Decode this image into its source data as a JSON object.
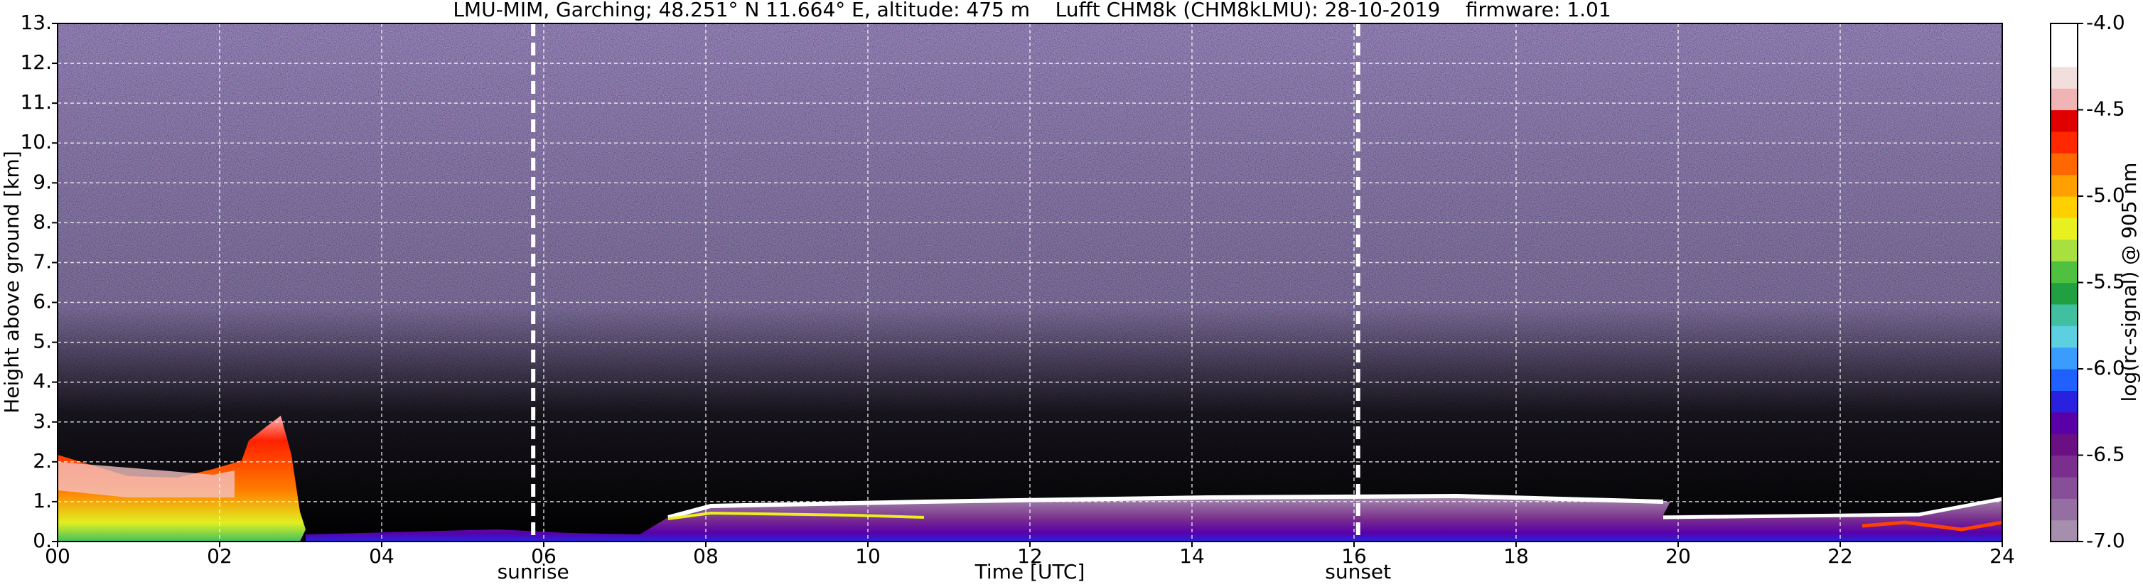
{
  "chart_data": {
    "type": "heatmap",
    "title": "LMU-MIM, Garching; 48.251° N 11.664° E, altitude: 475 m    Lufft CHM8k (CHM8kLMU): 28-10-2019    firmware: 1.01",
    "x_label": "Time [UTC]",
    "y_label": "Height above ground [km]",
    "xlim": [
      0,
      24
    ],
    "xticks": [
      {
        "value": 0,
        "label": "00"
      },
      {
        "value": 2,
        "label": "02"
      },
      {
        "value": 4,
        "label": "04"
      },
      {
        "value": 6,
        "label": "06"
      },
      {
        "value": 8,
        "label": "08"
      },
      10,
      12,
      14,
      16,
      18,
      20,
      22,
      24
    ],
    "ylim": [
      0,
      13
    ],
    "yticks": [
      {
        "value": 0,
        "label": "0."
      },
      {
        "value": 1,
        "label": "1."
      },
      {
        "value": 2,
        "label": "2."
      },
      {
        "value": 3,
        "label": "3."
      },
      {
        "value": 4,
        "label": "4."
      },
      {
        "value": 5,
        "label": "5."
      },
      {
        "value": 6,
        "label": "6."
      },
      {
        "value": 7,
        "label": "7."
      },
      {
        "value": 8,
        "label": "8."
      },
      {
        "value": 9,
        "label": "9."
      },
      {
        "value": 10,
        "label": "10."
      },
      {
        "value": 11,
        "label": "11."
      },
      {
        "value": 12,
        "label": "12."
      },
      {
        "value": 13,
        "label": "13."
      }
    ],
    "grid": true,
    "annotations": [
      {
        "x": 5.87,
        "label": "sunrise"
      },
      {
        "x": 16.05,
        "label": "sunset"
      }
    ],
    "colorbar": {
      "label": "log(rc-signal) @ 905 nm",
      "zlim": [
        -7,
        -4
      ],
      "zticks": [
        {
          "value": -7,
          "label": "-7.0"
        },
        {
          "value": -6.5,
          "label": "-6.5"
        },
        {
          "value": -6,
          "label": "-6.0"
        },
        {
          "value": -5.5,
          "label": "-5.5"
        },
        {
          "value": -5,
          "label": "-5.0"
        },
        {
          "value": -4.5,
          "label": "-4.5"
        },
        {
          "value": -4,
          "label": "-4.0"
        }
      ],
      "colors": [
        "#a58fac",
        "#956fa2",
        "#864f97",
        "#7a2f8e",
        "#6a1082",
        "#5a00a8",
        "#2a20e0",
        "#2060ff",
        "#3a9cff",
        "#5cd0e0",
        "#40c0a0",
        "#20a040",
        "#50c040",
        "#a8e040",
        "#e8f020",
        "#ffd000",
        "#ffa000",
        "#ff6800",
        "#ff2800",
        "#e00000",
        "#f0b4b4",
        "#f3dede",
        "#ffffff",
        "#ffffff"
      ]
    }
  }
}
